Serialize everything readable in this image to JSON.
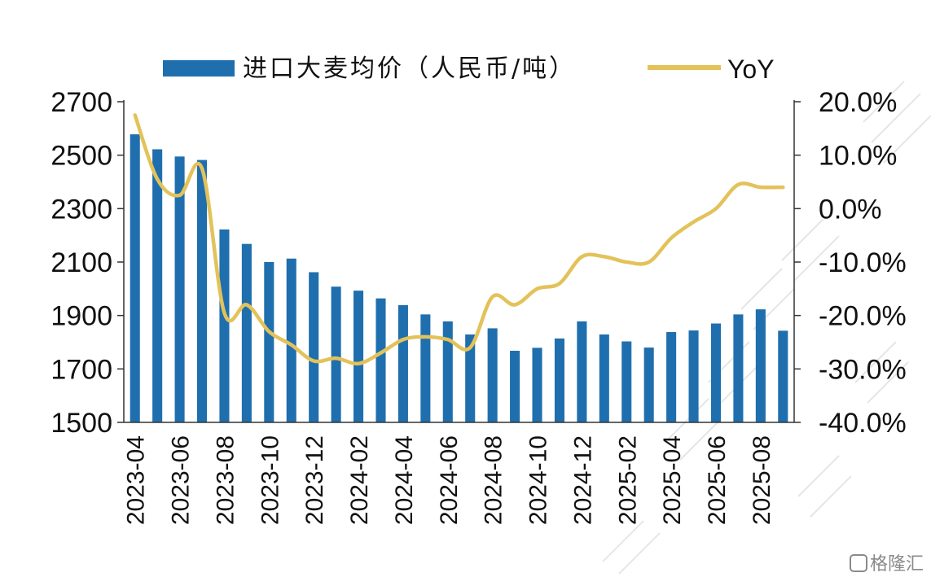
{
  "chart_data": {
    "type": "bar+line",
    "categories": [
      "2023-04",
      "2023-05",
      "2023-06",
      "2023-07",
      "2023-08",
      "2023-09",
      "2023-10",
      "2023-11",
      "2023-12",
      "2024-01",
      "2024-02",
      "2024-03",
      "2024-04",
      "2024-05",
      "2024-06",
      "2024-07",
      "2024-08",
      "2024-09",
      "2024-10",
      "2024-11",
      "2024-12",
      "2025-01",
      "2025-02",
      "2025-03",
      "2025-04",
      "2025-05",
      "2025-06",
      "2025-07",
      "2025-08",
      "2025-09"
    ],
    "x_tick_labels": [
      "2023-04",
      "2023-06",
      "2023-08",
      "2023-10",
      "2023-12",
      "2024-02",
      "2024-04",
      "2024-06",
      "2024-08",
      "2024-10",
      "2024-12",
      "2025-02",
      "2025-04",
      "2025-06",
      "2025-08"
    ],
    "series": [
      {
        "name": "进口大麦均价（人民币/吨）",
        "type": "bar",
        "axis": "left",
        "color": "#1f6fae",
        "values": [
          2578,
          2522,
          2495,
          2482,
          2222,
          2168,
          2100,
          2113,
          2062,
          2008,
          1993,
          1964,
          1939,
          1904,
          1878,
          1829,
          1852,
          1768,
          1779,
          1814,
          1878,
          1829,
          1803,
          1780,
          1838,
          1844,
          1870,
          1904,
          1923,
          1843
        ]
      },
      {
        "name": "YoY",
        "type": "line",
        "axis": "right",
        "color": "#e3c25a",
        "values": [
          17.5,
          5.5,
          2.5,
          7.5,
          -19.5,
          -18.0,
          -23.0,
          -25.5,
          -28.5,
          -28.0,
          -29.0,
          -27.0,
          -24.5,
          -24.0,
          -24.5,
          -26.0,
          -16.5,
          -18.0,
          -15.0,
          -14.0,
          -9.0,
          -9.0,
          -10.0,
          -10.0,
          -5.5,
          -2.5,
          0.0,
          4.5,
          4.0,
          4.0
        ]
      }
    ],
    "y_left": {
      "min": 1500,
      "max": 2700,
      "ticks": [
        "1500",
        "1700",
        "1900",
        "2100",
        "2300",
        "2500",
        "2700"
      ]
    },
    "y_right": {
      "min": -40,
      "max": 20,
      "ticks": [
        "-40.0%",
        "-30.0%",
        "-20.0%",
        "-10.0%",
        "0.0%",
        "10.0%",
        "20.0%"
      ]
    },
    "legend": {
      "position": "top",
      "bar_label": "进口大麦均价（人民币/吨）",
      "line_label": "YoY"
    }
  },
  "watermark": {
    "text": "格隆汇",
    "icon": "watermark-logo-icon"
  }
}
